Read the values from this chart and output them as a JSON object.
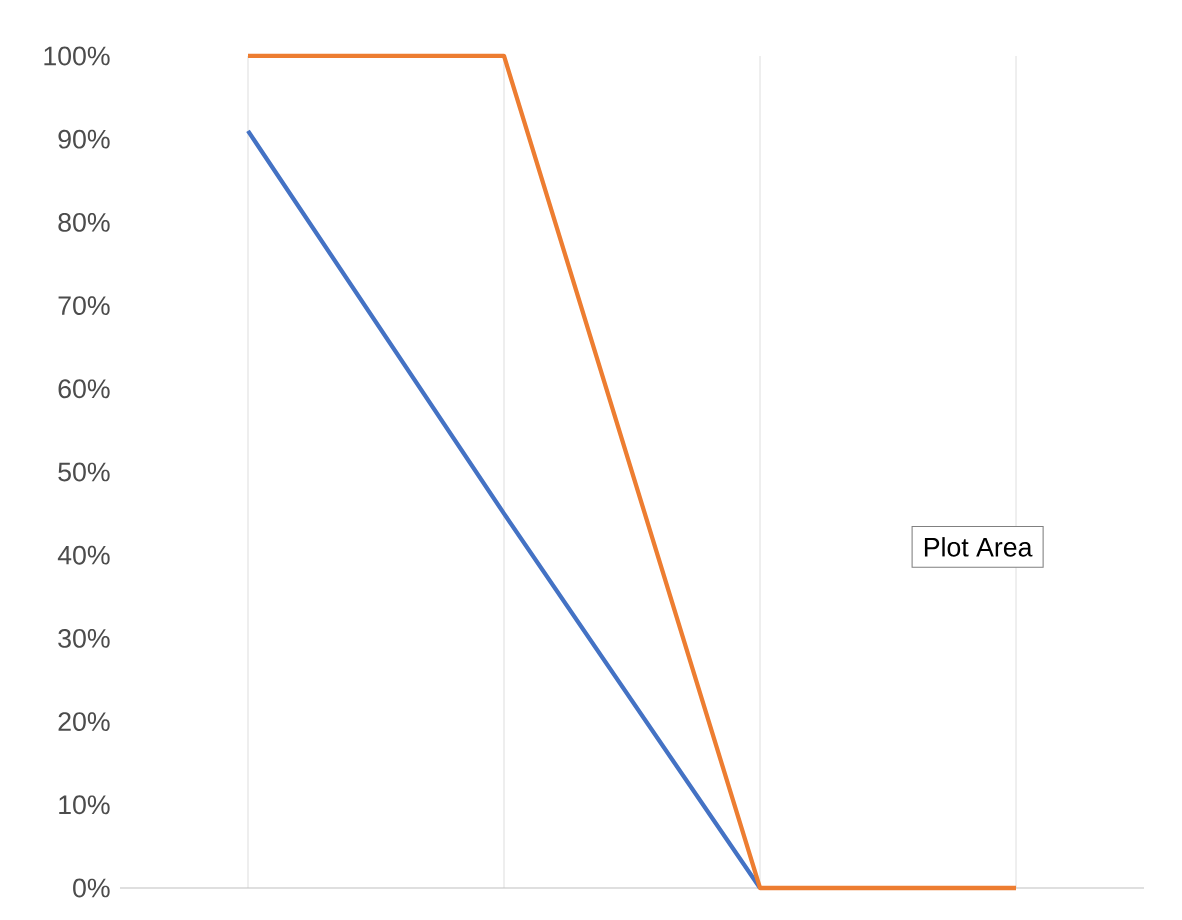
{
  "chart_data": {
    "type": "line",
    "categories": [
      null,
      null,
      null,
      null
    ],
    "series": [
      {
        "color": "#4472c4",
        "values": [
          91,
          45,
          0,
          null
        ]
      },
      {
        "color": "#ed7d31",
        "values": [
          100,
          100,
          0,
          0
        ]
      }
    ],
    "ylim": [
      0,
      100
    ],
    "yticks": [
      {
        "value": 0,
        "label": "0%"
      },
      {
        "value": 10,
        "label": "10%"
      },
      {
        "value": 20,
        "label": "20%"
      },
      {
        "value": 30,
        "label": "30%"
      },
      {
        "value": 40,
        "label": "40%"
      },
      {
        "value": 50,
        "label": "50%"
      },
      {
        "value": 60,
        "label": "60%"
      },
      {
        "value": 70,
        "label": "70%"
      },
      {
        "value": 80,
        "label": "80%"
      },
      {
        "value": 90,
        "label": "90%"
      },
      {
        "value": 100,
        "label": "100%"
      }
    ],
    "grid": "x",
    "annotations": [
      "Plot Area"
    ]
  }
}
